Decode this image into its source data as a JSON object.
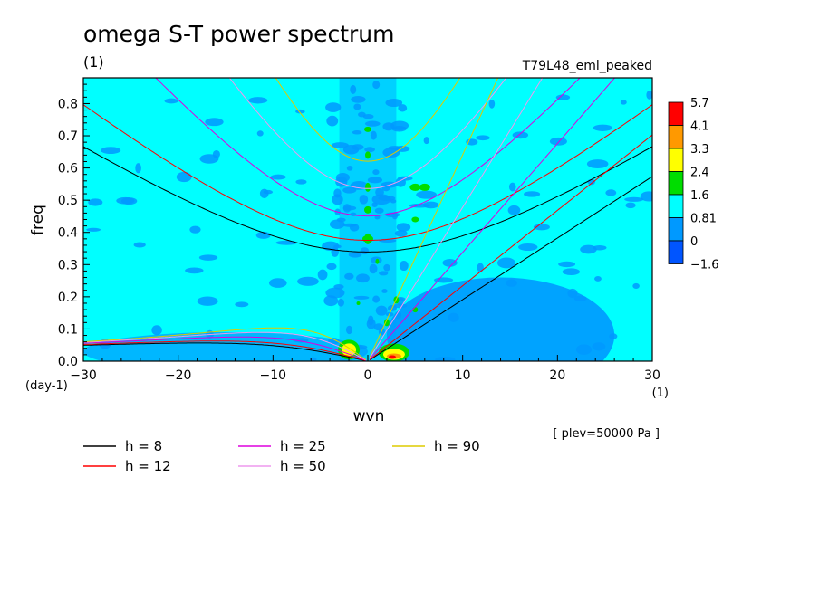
{
  "chart_data": {
    "type": "heatmap",
    "title": "omega S-T power spectrum",
    "subtitle": "(1)",
    "experiment": "T79L48_eml_peaked",
    "xlabel": "wvn",
    "ylabel": "freq",
    "xunit": "(1)",
    "yunit": "(day-1)",
    "footnote": "[ plev=50000 Pa ]",
    "xlim": [
      -30,
      30
    ],
    "ylim": [
      0,
      0.88
    ],
    "xticks": [
      -30,
      -20,
      -10,
      0,
      10,
      20,
      30
    ],
    "yticks": [
      0.0,
      0.1,
      0.2,
      0.3,
      0.4,
      0.5,
      0.6,
      0.7,
      0.8
    ],
    "colorbar": {
      "levels": [
        "5.7",
        "4.1",
        "3.3",
        "2.4",
        "1.6",
        "0.81",
        "0",
        "-1.6"
      ],
      "colors": [
        "#ff0000",
        "#ff9900",
        "#ffff00",
        "#00dd00",
        "#00ffff",
        "#0099ff",
        "#0055ff"
      ]
    },
    "field": {
      "background_color": "#00ffff",
      "low_color": "#0099ff",
      "green_color": "#00dd00",
      "peaks": [
        {
          "x": -2,
          "y": 0.03,
          "level": "2.4"
        },
        {
          "x": 2,
          "y": 0.01,
          "level": "4.1"
        },
        {
          "x": 5,
          "y": 0.54,
          "level": "1.6"
        },
        {
          "x": 0,
          "y": 0.38,
          "level": "1.6"
        }
      ]
    },
    "dispersion_curves": [
      {
        "label": "h =  8",
        "h": 8,
        "color": "#000000"
      },
      {
        "label": "h = 12",
        "h": 12,
        "color": "#ff0000"
      },
      {
        "label": "h = 25",
        "h": 25,
        "color": "#dd00dd"
      },
      {
        "label": "h = 50",
        "h": 50,
        "color": "#ee99ee"
      },
      {
        "label": "h = 90",
        "h": 90,
        "color": "#ddcc00"
      }
    ]
  }
}
